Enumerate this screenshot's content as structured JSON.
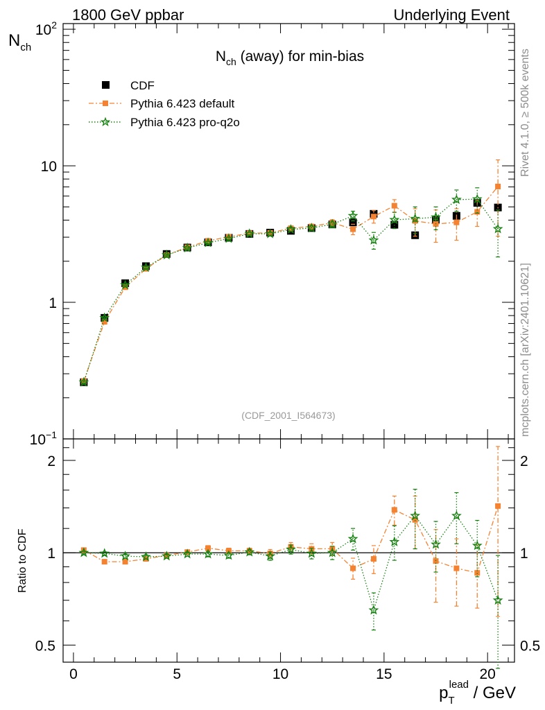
{
  "header": {
    "left": "1800 GeV ppbar",
    "right": "Underlying Event"
  },
  "side_labels": {
    "rivet": "Rivet 4.1.0, ≥ 500k events",
    "mcplots": "mcplots.cern.ch [arXiv:2401.10621]"
  },
  "chart_data": [
    {
      "type": "scatter",
      "panel": "main",
      "title": "N_ch (away) for min-bias",
      "title_main": "N",
      "title_sub": "ch",
      "title_rest": " (away) for min-bias",
      "ylabel_main": "N",
      "ylabel_sub": "ch",
      "yscale": "log",
      "ylim": [
        0.1,
        110
      ],
      "xlim": [
        -0.5,
        21.3
      ],
      "annotation": "(CDF_2001_I564673)",
      "y_ticks": [
        {
          "value": 100,
          "base": "10",
          "exp": "2"
        },
        {
          "value": 10,
          "base": "10",
          "exp": ""
        },
        {
          "value": 1,
          "base": "1",
          "exp": ""
        },
        {
          "value": 0.1,
          "base": "10",
          "exp": "−1"
        }
      ],
      "x": [
        0.5,
        1.5,
        2.5,
        3.5,
        4.5,
        5.5,
        6.5,
        7.5,
        8.5,
        9.5,
        10.5,
        11.5,
        12.5,
        13.5,
        14.5,
        15.5,
        16.5,
        17.5,
        18.5,
        19.5,
        20.5
      ],
      "series": [
        {
          "name": "CDF",
          "color": "#000000",
          "marker": "square",
          "values": [
            0.26,
            0.77,
            1.38,
            1.84,
            2.26,
            2.52,
            2.75,
            2.97,
            3.17,
            3.24,
            3.34,
            3.5,
            3.72,
            3.85,
            4.45,
            3.7,
            3.1,
            4.0,
            4.3,
            5.35,
            4.95
          ],
          "errors": [
            0,
            0,
            0,
            0,
            0,
            0,
            0,
            0,
            0,
            0,
            0,
            0,
            0,
            0,
            0,
            0,
            0,
            0,
            0,
            0,
            0
          ]
        },
        {
          "name": "Pythia 6.423 default",
          "color": "#f58231",
          "marker": "square-small",
          "line": "dashdot",
          "values": [
            0.265,
            0.72,
            1.29,
            1.76,
            2.22,
            2.53,
            2.82,
            3.02,
            3.21,
            3.23,
            3.49,
            3.59,
            3.83,
            3.43,
            4.25,
            5.1,
            3.95,
            3.75,
            3.85,
            4.6,
            7.05
          ],
          "errors": [
            0.005,
            0.01,
            0.02,
            0.03,
            0.03,
            0.04,
            0.05,
            0.06,
            0.07,
            0.09,
            0.12,
            0.15,
            0.2,
            0.3,
            0.45,
            0.55,
            0.9,
            1.0,
            1.0,
            1.0,
            4.0
          ]
        },
        {
          "name": "Pythia 6.423 pro-q2o",
          "color": "#15800f",
          "marker": "star",
          "line": "dotted",
          "values": [
            0.26,
            0.77,
            1.34,
            1.8,
            2.22,
            2.5,
            2.73,
            2.93,
            3.18,
            3.17,
            3.42,
            3.5,
            3.73,
            4.3,
            2.85,
            4.02,
            4.1,
            4.2,
            5.65,
            5.7,
            3.45
          ],
          "errors": [
            0.005,
            0.01,
            0.02,
            0.03,
            0.03,
            0.04,
            0.05,
            0.06,
            0.07,
            0.09,
            0.12,
            0.15,
            0.2,
            0.35,
            0.4,
            0.55,
            0.9,
            0.8,
            1.0,
            1.2,
            1.3
          ]
        }
      ]
    },
    {
      "type": "scatter",
      "panel": "ratio",
      "ylabel": "Ratio to CDF",
      "yscale": "log",
      "ylim": [
        0.44,
        2.35
      ],
      "xlim": [
        -0.5,
        21.3
      ],
      "xlabel_main": "p",
      "xlabel_sub": "T",
      "xlabel_sup": "lead",
      "xlabel_rest": " / GeV",
      "x_ticks": [
        0,
        5,
        10,
        15,
        20
      ],
      "y_ticks": [
        0.5,
        1,
        2
      ],
      "reference": 1,
      "x": [
        0.5,
        1.5,
        2.5,
        3.5,
        4.5,
        5.5,
        6.5,
        7.5,
        8.5,
        9.5,
        10.5,
        11.5,
        12.5,
        13.5,
        14.5,
        15.5,
        16.5,
        17.5,
        18.5,
        19.5,
        20.5
      ],
      "series": [
        {
          "name": "Pythia 6.423 default",
          "color": "#f58231",
          "marker": "square-small",
          "line": "dashdot",
          "values": [
            1.02,
            0.935,
            0.935,
            0.955,
            0.98,
            1.005,
            1.035,
            1.015,
            1.015,
            0.995,
            1.045,
            1.03,
            1.03,
            0.89,
            0.955,
            1.38,
            1.28,
            0.94,
            0.89,
            0.86,
            1.42
          ],
          "errors": [
            0.01,
            0.012,
            0.015,
            0.015,
            0.015,
            0.015,
            0.02,
            0.02,
            0.02,
            0.03,
            0.035,
            0.04,
            0.05,
            0.07,
            0.1,
            0.15,
            0.25,
            0.25,
            0.22,
            0.2,
            0.8
          ]
        },
        {
          "name": "Pythia 6.423 pro-q2o",
          "color": "#15800f",
          "marker": "star",
          "line": "dotted",
          "values": [
            1.0,
            0.995,
            0.975,
            0.97,
            0.975,
            0.99,
            0.99,
            0.98,
            1.005,
            0.975,
            1.025,
            0.995,
            1.0,
            1.11,
            0.65,
            1.085,
            1.32,
            1.065,
            1.32,
            1.055,
            0.7
          ],
          "errors": [
            0.01,
            0.012,
            0.015,
            0.015,
            0.015,
            0.015,
            0.02,
            0.02,
            0.02,
            0.03,
            0.035,
            0.04,
            0.05,
            0.09,
            0.09,
            0.14,
            0.29,
            0.2,
            0.25,
            0.22,
            0.28
          ]
        }
      ]
    }
  ]
}
